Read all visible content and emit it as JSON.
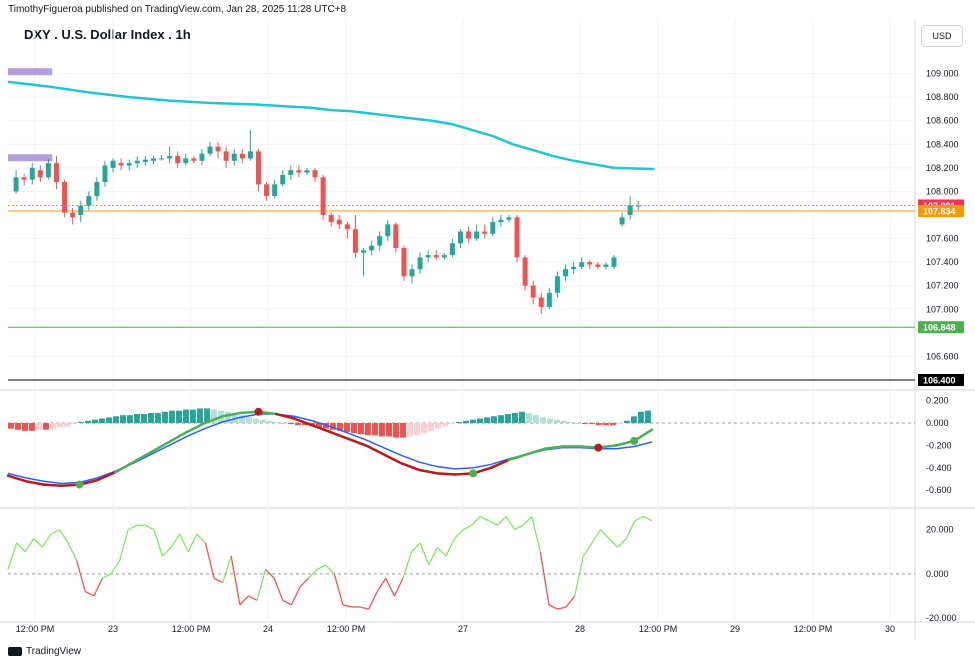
{
  "header": {
    "published_by": "TimothyFigueroa published on TradingView.com, Jan 28, 2025 11:28 UTC+8",
    "symbol_title": "DXY . U.S. Dollar Index . 1h",
    "currency_button": "USD"
  },
  "footer": {
    "brand": "TradingView"
  },
  "colors": {
    "up": "#26a69a",
    "down": "#ef5350",
    "ma": "#22c4d0",
    "hline_green": "#4caf50",
    "hline_black": "#000000",
    "price_red": "#f23645",
    "price_orange": "#ff9800",
    "macd_line": "#2962ff",
    "signal_up": "#4caf50",
    "signal_down": "#b71c1c",
    "rsi_up": "#7ee85f",
    "rsi_down": "#ef5350",
    "band_purple": "#b39ddb"
  },
  "chart_data": [
    {
      "type": "candlestick",
      "title": "DXY . U.S. Dollar Index . 1h",
      "ylim": [
        106.4,
        109.2
      ],
      "y_ticks": [
        "109.000",
        "108.800",
        "108.600",
        "108.400",
        "108.200",
        "108.000",
        "107.600",
        "107.400",
        "107.200",
        "107.000",
        "106.600"
      ],
      "x_ticks": [
        "12:00 PM",
        "23",
        "12:00 PM",
        "24",
        "12:00 PM",
        "27",
        "28",
        "12:00 PM",
        "29",
        "12:00 PM",
        "30"
      ],
      "price_labels": [
        {
          "value": "107.881",
          "color": "#f23645"
        },
        {
          "value": "107.834",
          "color": "#ff9800"
        },
        {
          "value": "106.848",
          "color": "#4caf50"
        },
        {
          "value": "106.400",
          "color": "#000000"
        }
      ],
      "horizontal_lines": [
        {
          "y": 106.848,
          "color": "#4caf50",
          "style": "solid"
        },
        {
          "y": 106.4,
          "color": "#000000",
          "style": "solid"
        },
        {
          "y": 107.834,
          "color": "#ff9800",
          "style": "solid"
        },
        {
          "y": 107.881,
          "color": "#ff9800",
          "style": "dotted"
        }
      ],
      "zones": [
        {
          "y": 109.02,
          "x_end": 12
        },
        {
          "y": 108.29,
          "x_end": 12
        }
      ],
      "moving_average": {
        "x": [
          0,
          20,
          40,
          60,
          80,
          100,
          120,
          130,
          140,
          150,
          160,
          170,
          180,
          190,
          200,
          210,
          220,
          230,
          240,
          250,
          260,
          270,
          280,
          300,
          320
        ],
        "y": [
          108.93,
          108.89,
          108.84,
          108.8,
          108.77,
          108.75,
          108.74,
          108.73,
          108.72,
          108.71,
          108.69,
          108.68,
          108.66,
          108.64,
          108.62,
          108.6,
          108.57,
          108.52,
          108.47,
          108.4,
          108.35,
          108.3,
          108.26,
          108.2,
          108.19
        ]
      },
      "candles": [
        {
          "x": 4,
          "o": 108.0,
          "c": 108.12,
          "h": 108.18,
          "l": 107.98
        },
        {
          "x": 8,
          "o": 108.12,
          "c": 108.1,
          "h": 108.15,
          "l": 108.05
        },
        {
          "x": 12,
          "o": 108.1,
          "c": 108.2,
          "h": 108.24,
          "l": 108.06
        },
        {
          "x": 16,
          "o": 108.18,
          "c": 108.12,
          "h": 108.22,
          "l": 108.08
        },
        {
          "x": 20,
          "o": 108.12,
          "c": 108.24,
          "h": 108.28,
          "l": 108.1
        },
        {
          "x": 24,
          "o": 108.24,
          "c": 108.08,
          "h": 108.3,
          "l": 108.02
        },
        {
          "x": 28,
          "o": 108.08,
          "c": 107.82,
          "h": 108.1,
          "l": 107.78
        },
        {
          "x": 32,
          "o": 107.82,
          "c": 107.78,
          "h": 107.86,
          "l": 107.72
        },
        {
          "x": 36,
          "o": 107.8,
          "c": 107.88,
          "h": 107.92,
          "l": 107.74
        },
        {
          "x": 40,
          "o": 107.88,
          "c": 107.96,
          "h": 108.0,
          "l": 107.84
        },
        {
          "x": 44,
          "o": 107.96,
          "c": 108.08,
          "h": 108.12,
          "l": 107.92
        },
        {
          "x": 48,
          "o": 108.08,
          "c": 108.22,
          "h": 108.26,
          "l": 108.04
        },
        {
          "x": 52,
          "o": 108.2,
          "c": 108.26,
          "h": 108.28,
          "l": 108.16
        },
        {
          "x": 56,
          "o": 108.24,
          "c": 108.22,
          "h": 108.28,
          "l": 108.18
        },
        {
          "x": 60,
          "o": 108.22,
          "c": 108.24,
          "h": 108.27,
          "l": 108.18
        },
        {
          "x": 64,
          "o": 108.24,
          "c": 108.26,
          "h": 108.3,
          "l": 108.2
        },
        {
          "x": 68,
          "o": 108.25,
          "c": 108.27,
          "h": 108.3,
          "l": 108.22
        },
        {
          "x": 72,
          "o": 108.26,
          "c": 108.28,
          "h": 108.3,
          "l": 108.23
        },
        {
          "x": 76,
          "o": 108.28,
          "c": 108.28,
          "h": 108.31,
          "l": 108.26
        },
        {
          "x": 80,
          "o": 108.28,
          "c": 108.3,
          "h": 108.38,
          "l": 108.24
        },
        {
          "x": 84,
          "o": 108.3,
          "c": 108.24,
          "h": 108.34,
          "l": 108.2
        },
        {
          "x": 88,
          "o": 108.24,
          "c": 108.28,
          "h": 108.32,
          "l": 108.22
        },
        {
          "x": 92,
          "o": 108.28,
          "c": 108.26,
          "h": 108.3,
          "l": 108.24
        },
        {
          "x": 96,
          "o": 108.26,
          "c": 108.32,
          "h": 108.36,
          "l": 108.22
        },
        {
          "x": 100,
          "o": 108.32,
          "c": 108.38,
          "h": 108.42,
          "l": 108.3
        },
        {
          "x": 104,
          "o": 108.38,
          "c": 108.34,
          "h": 108.42,
          "l": 108.28
        },
        {
          "x": 108,
          "o": 108.34,
          "c": 108.26,
          "h": 108.38,
          "l": 108.2
        },
        {
          "x": 112,
          "o": 108.26,
          "c": 108.32,
          "h": 108.36,
          "l": 108.22
        },
        {
          "x": 116,
          "o": 108.32,
          "c": 108.28,
          "h": 108.36,
          "l": 108.24
        },
        {
          "x": 120,
          "o": 108.28,
          "c": 108.34,
          "h": 108.52,
          "l": 108.26
        },
        {
          "x": 124,
          "o": 108.34,
          "c": 108.06,
          "h": 108.36,
          "l": 108.0
        },
        {
          "x": 128,
          "o": 108.06,
          "c": 107.96,
          "h": 108.08,
          "l": 107.92
        },
        {
          "x": 132,
          "o": 107.96,
          "c": 108.06,
          "h": 108.1,
          "l": 107.94
        },
        {
          "x": 136,
          "o": 108.06,
          "c": 108.14,
          "h": 108.18,
          "l": 108.04
        },
        {
          "x": 140,
          "o": 108.14,
          "c": 108.18,
          "h": 108.22,
          "l": 108.1
        },
        {
          "x": 144,
          "o": 108.18,
          "c": 108.16,
          "h": 108.22,
          "l": 108.12
        },
        {
          "x": 148,
          "o": 108.16,
          "c": 108.18,
          "h": 108.2,
          "l": 108.14
        },
        {
          "x": 152,
          "o": 108.18,
          "c": 108.12,
          "h": 108.2,
          "l": 108.08
        },
        {
          "x": 156,
          "o": 108.12,
          "c": 107.8,
          "h": 108.14,
          "l": 107.76
        },
        {
          "x": 160,
          "o": 107.8,
          "c": 107.74,
          "h": 107.82,
          "l": 107.7
        },
        {
          "x": 164,
          "o": 107.76,
          "c": 107.72,
          "h": 107.8,
          "l": 107.68
        },
        {
          "x": 168,
          "o": 107.72,
          "c": 107.68,
          "h": 107.74,
          "l": 107.6
        },
        {
          "x": 172,
          "o": 107.68,
          "c": 107.48,
          "h": 107.8,
          "l": 107.44
        },
        {
          "x": 176,
          "o": 107.48,
          "c": 107.5,
          "h": 107.52,
          "l": 107.28
        },
        {
          "x": 180,
          "o": 107.5,
          "c": 107.54,
          "h": 107.58,
          "l": 107.46
        },
        {
          "x": 184,
          "o": 107.54,
          "c": 107.62,
          "h": 107.66,
          "l": 107.5
        },
        {
          "x": 188,
          "o": 107.62,
          "c": 107.72,
          "h": 107.76,
          "l": 107.58
        },
        {
          "x": 192,
          "o": 107.72,
          "c": 107.52,
          "h": 107.74,
          "l": 107.48
        },
        {
          "x": 196,
          "o": 107.52,
          "c": 107.28,
          "h": 107.54,
          "l": 107.24
        },
        {
          "x": 200,
          "o": 107.28,
          "c": 107.34,
          "h": 107.38,
          "l": 107.22
        },
        {
          "x": 204,
          "o": 107.34,
          "c": 107.44,
          "h": 107.48,
          "l": 107.3
        },
        {
          "x": 208,
          "o": 107.44,
          "c": 107.46,
          "h": 107.5,
          "l": 107.4
        },
        {
          "x": 212,
          "o": 107.46,
          "c": 107.44,
          "h": 107.5,
          "l": 107.42
        },
        {
          "x": 216,
          "o": 107.44,
          "c": 107.46,
          "h": 107.48,
          "l": 107.42
        },
        {
          "x": 220,
          "o": 107.46,
          "c": 107.56,
          "h": 107.6,
          "l": 107.44
        },
        {
          "x": 224,
          "o": 107.56,
          "c": 107.66,
          "h": 107.68,
          "l": 107.52
        },
        {
          "x": 228,
          "o": 107.66,
          "c": 107.6,
          "h": 107.7,
          "l": 107.56
        },
        {
          "x": 232,
          "o": 107.6,
          "c": 107.66,
          "h": 107.72,
          "l": 107.58
        },
        {
          "x": 236,
          "o": 107.66,
          "c": 107.64,
          "h": 107.72,
          "l": 107.6
        },
        {
          "x": 240,
          "o": 107.64,
          "c": 107.74,
          "h": 107.78,
          "l": 107.62
        },
        {
          "x": 244,
          "o": 107.74,
          "c": 107.76,
          "h": 107.8,
          "l": 107.7
        },
        {
          "x": 248,
          "o": 107.76,
          "c": 107.78,
          "h": 107.8,
          "l": 107.74
        },
        {
          "x": 252,
          "o": 107.78,
          "c": 107.44,
          "h": 107.8,
          "l": 107.4
        },
        {
          "x": 256,
          "o": 107.44,
          "c": 107.2,
          "h": 107.46,
          "l": 107.16
        },
        {
          "x": 260,
          "o": 107.2,
          "c": 107.1,
          "h": 107.24,
          "l": 107.04
        },
        {
          "x": 264,
          "o": 107.1,
          "c": 107.02,
          "h": 107.14,
          "l": 106.96
        },
        {
          "x": 268,
          "o": 107.02,
          "c": 107.14,
          "h": 107.18,
          "l": 107.0
        },
        {
          "x": 272,
          "o": 107.14,
          "c": 107.28,
          "h": 107.32,
          "l": 107.1
        },
        {
          "x": 276,
          "o": 107.28,
          "c": 107.34,
          "h": 107.38,
          "l": 107.24
        },
        {
          "x": 280,
          "o": 107.34,
          "c": 107.36,
          "h": 107.4,
          "l": 107.3
        },
        {
          "x": 284,
          "o": 107.36,
          "c": 107.4,
          "h": 107.44,
          "l": 107.34
        },
        {
          "x": 288,
          "o": 107.4,
          "c": 107.38,
          "h": 107.42,
          "l": 107.34
        },
        {
          "x": 292,
          "o": 107.38,
          "c": 107.36,
          "h": 107.4,
          "l": 107.34
        },
        {
          "x": 296,
          "o": 107.36,
          "c": 107.38,
          "h": 107.4,
          "l": 107.34
        },
        {
          "x": 300,
          "o": 107.36,
          "c": 107.44,
          "h": 107.46,
          "l": 107.34
        },
        {
          "x": 304,
          "o": 107.72,
          "c": 107.78,
          "h": 107.82,
          "l": 107.7
        },
        {
          "x": 308,
          "o": 107.8,
          "c": 107.88,
          "h": 107.96,
          "l": 107.76
        },
        {
          "x": 312,
          "o": 107.88,
          "c": 107.88,
          "h": 107.92,
          "l": 107.84
        }
      ]
    },
    {
      "type": "bar",
      "name": "MACD histogram and lines",
      "ylim": [
        -0.75,
        0.25
      ],
      "y_ticks": [
        "0.200",
        "0.000",
        "-0.200",
        "-0.400",
        "-0.600"
      ],
      "histogram": [
        -0.05,
        -0.06,
        -0.07,
        -0.07,
        -0.06,
        -0.06,
        -0.05,
        -0.04,
        -0.03,
        -0.01,
        0.01,
        0.02,
        0.03,
        0.04,
        0.05,
        0.06,
        0.07,
        0.07,
        0.08,
        0.08,
        0.09,
        0.09,
        0.1,
        0.11,
        0.11,
        0.12,
        0.12,
        0.13,
        0.13,
        0.12,
        0.11,
        0.1,
        0.08,
        0.07,
        0.05,
        0.04,
        0.03,
        0.02,
        0.01,
        0.0,
        -0.01,
        -0.02,
        -0.02,
        -0.03,
        -0.04,
        -0.05,
        -0.06,
        -0.07,
        -0.08,
        -0.09,
        -0.1,
        -0.11,
        -0.11,
        -0.12,
        -0.12,
        -0.13,
        -0.13,
        -0.12,
        -0.11,
        -0.09,
        -0.07,
        -0.05,
        -0.03,
        -0.01,
        0.01,
        0.02,
        0.03,
        0.04,
        0.05,
        0.06,
        0.07,
        0.08,
        0.09,
        0.1,
        0.09,
        0.07,
        0.05,
        0.04,
        0.03,
        0.02,
        0.01,
        0.0,
        -0.01,
        -0.01,
        -0.02,
        -0.02,
        -0.02,
        -0.01,
        0.02,
        0.06,
        0.1,
        0.11
      ],
      "macd_line": [
        -0.47,
        -0.52,
        -0.55,
        -0.56,
        -0.55,
        -0.51,
        -0.44,
        -0.35,
        -0.26,
        -0.17,
        -0.08,
        0.0,
        0.06,
        0.09,
        0.1,
        0.08,
        0.04,
        -0.02,
        -0.08,
        -0.14,
        -0.2,
        -0.28,
        -0.36,
        -0.42,
        -0.45,
        -0.46,
        -0.45,
        -0.4,
        -0.33,
        -0.28,
        -0.23,
        -0.21,
        -0.21,
        -0.22,
        -0.2,
        -0.16,
        -0.06
      ],
      "signal_line": [
        -0.45,
        -0.49,
        -0.52,
        -0.54,
        -0.53,
        -0.49,
        -0.43,
        -0.36,
        -0.28,
        -0.2,
        -0.12,
        -0.05,
        0.01,
        0.05,
        0.08,
        0.08,
        0.06,
        0.02,
        -0.03,
        -0.09,
        -0.15,
        -0.22,
        -0.29,
        -0.35,
        -0.39,
        -0.41,
        -0.4,
        -0.37,
        -0.32,
        -0.28,
        -0.24,
        -0.22,
        -0.22,
        -0.23,
        -0.23,
        -0.21,
        -0.17
      ],
      "cross_points": [
        {
          "i": 4,
          "color": "#4caf50"
        },
        {
          "i": 14,
          "color": "#b71c1c"
        },
        {
          "i": 26,
          "color": "#4caf50"
        },
        {
          "i": 33,
          "color": "#b71c1c"
        },
        {
          "i": 35,
          "color": "#4caf50"
        }
      ]
    },
    {
      "type": "line",
      "name": "Oscillator",
      "ylim": [
        -20,
        28
      ],
      "y_ticks": [
        "20.000",
        "0.000",
        "-20.000"
      ],
      "values": [
        2,
        14,
        10,
        16,
        12,
        18,
        20,
        14,
        6,
        -8,
        -10,
        -2,
        0,
        6,
        20,
        22,
        22,
        20,
        8,
        12,
        18,
        10,
        18,
        14,
        -2,
        -4,
        8,
        -14,
        -10,
        -12,
        2,
        -2,
        -12,
        -14,
        -6,
        -2,
        2,
        4,
        0,
        -14,
        -15,
        -15,
        -16,
        -8,
        -2,
        -10,
        -2,
        10,
        14,
        4,
        12,
        8,
        16,
        20,
        22,
        26,
        24,
        22,
        26,
        20,
        22,
        26,
        10,
        -14,
        -16,
        -15,
        -10,
        8,
        14,
        20,
        16,
        12,
        16,
        24,
        26,
        24
      ]
    }
  ]
}
